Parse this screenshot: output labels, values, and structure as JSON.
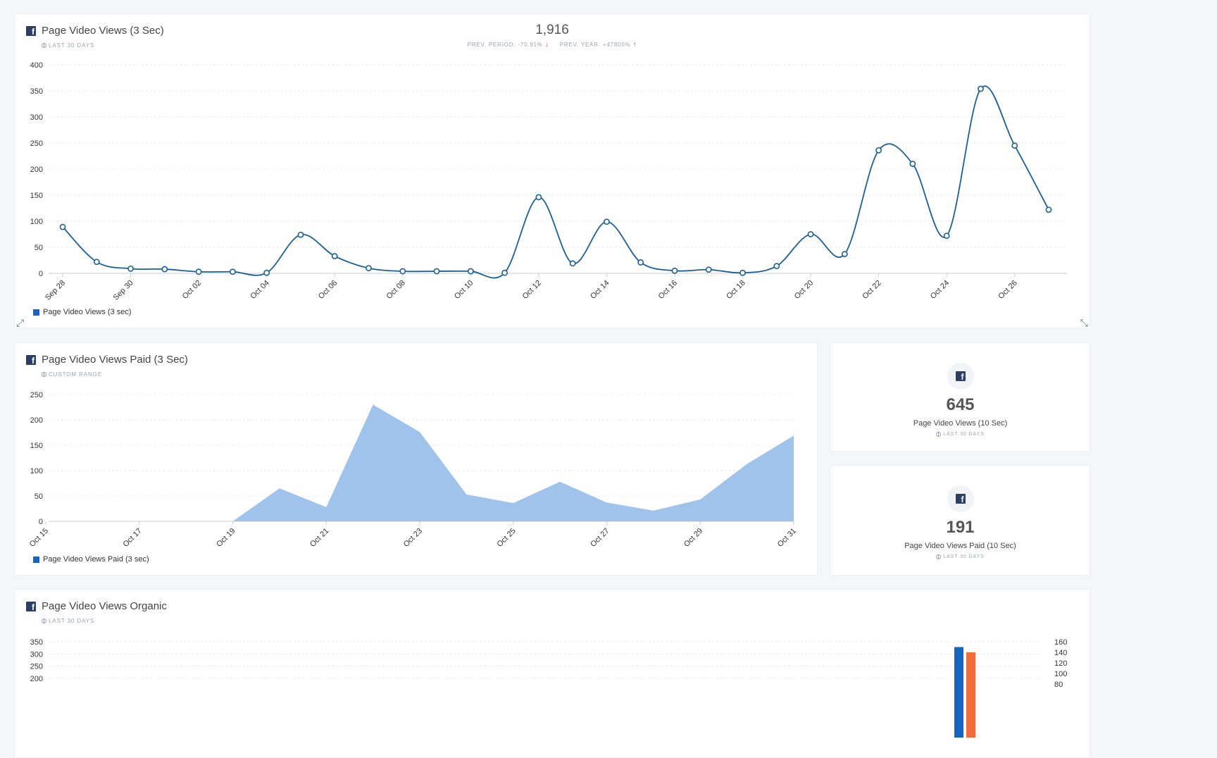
{
  "widget1": {
    "title": "Page Video Views (3 Sec)",
    "subtitle": "LAST 30 DAYS",
    "kpi_value": "1,916",
    "prev_period": "PREV. PERIOD: -70.91%",
    "prev_year": "PREV. YEAR: +47800%",
    "legend": "Page Video Views (3 sec)"
  },
  "widget2": {
    "title": "Page Video Views Paid (3 Sec)",
    "subtitle": "CUSTOM RANGE",
    "legend": "Page Video Views Paid (3 sec)"
  },
  "stat1": {
    "value": "645",
    "label": "Page Video Views (10 Sec)",
    "subtitle": "LAST 30 DAYS"
  },
  "stat2": {
    "value": "191",
    "label": "Page Video Views Paid (10 Sec)",
    "subtitle": "LAST 30 DAYS"
  },
  "widget3": {
    "title": "Page Video Views Organic",
    "subtitle": "LAST 30 DAYS"
  },
  "colors": {
    "line": "#1c5f93",
    "area": "#a0c3ec",
    "bar_blue": "#1565c0",
    "bar_orange": "#f26b3a"
  },
  "chart_data": [
    {
      "type": "line",
      "x": [
        "Sep 28",
        "Sep 29",
        "Sep 30",
        "Oct 01",
        "Oct 02",
        "Oct 03",
        "Oct 04",
        "Oct 05",
        "Oct 06",
        "Oct 07",
        "Oct 08",
        "Oct 09",
        "Oct 10",
        "Oct 11",
        "Oct 12",
        "Oct 13",
        "Oct 14",
        "Oct 15",
        "Oct 16",
        "Oct 17",
        "Oct 18",
        "Oct 19",
        "Oct 20",
        "Oct 21",
        "Oct 22",
        "Oct 23",
        "Oct 24",
        "Oct 25",
        "Oct 26",
        "Oct 27"
      ],
      "tick_labels": [
        "Sep 28",
        "Sep 30",
        "Oct 02",
        "Oct 04",
        "Oct 06",
        "Oct 08",
        "Oct 10",
        "Oct 12",
        "Oct 14",
        "Oct 16",
        "Oct 18",
        "Oct 20",
        "Oct 22",
        "Oct 24",
        "Oct 26"
      ],
      "series": [
        {
          "name": "Page Video Views (3 sec)",
          "values": [
            89,
            22,
            9,
            8,
            3,
            3,
            1,
            74,
            33,
            10,
            4,
            4,
            4,
            1,
            146,
            19,
            99,
            21,
            5,
            7,
            1,
            14,
            75,
            37,
            236,
            210,
            72,
            354,
            245,
            122
          ]
        }
      ],
      "yticks": [
        0,
        50,
        100,
        150,
        200,
        250,
        300,
        350,
        400
      ],
      "ylim": [
        0,
        400
      ],
      "grid": true,
      "legend": "bottom-left"
    },
    {
      "type": "area",
      "x": [
        "Oct 15",
        "Oct 16",
        "Oct 17",
        "Oct 18",
        "Oct 19",
        "Oct 20",
        "Oct 21",
        "Oct 22",
        "Oct 23",
        "Oct 24",
        "Oct 25",
        "Oct 26",
        "Oct 27",
        "Oct 28",
        "Oct 29",
        "Oct 30",
        "Oct 31"
      ],
      "tick_labels": [
        "Oct 15",
        "Oct 17",
        "Oct 19",
        "Oct 21",
        "Oct 23",
        "Oct 25",
        "Oct 27",
        "Oct 29",
        "Oct 31"
      ],
      "series": [
        {
          "name": "Page Video Views Paid (3 sec)",
          "values": [
            0,
            0,
            0,
            0,
            0,
            65,
            28,
            230,
            176,
            53,
            36,
            78,
            37,
            21,
            43,
            113,
            169
          ]
        }
      ],
      "yticks": [
        0,
        50,
        100,
        150,
        200,
        250
      ],
      "ylim": [
        0,
        250
      ],
      "grid": true,
      "legend": "bottom-left"
    },
    {
      "type": "bar",
      "yticks_left": [
        200,
        250,
        300,
        350
      ],
      "yticks_right": [
        80,
        100,
        120,
        140,
        160
      ],
      "bars": [
        {
          "color": "blue",
          "value": 150
        },
        {
          "color": "orange",
          "value": 140
        }
      ],
      "grid": true
    }
  ]
}
